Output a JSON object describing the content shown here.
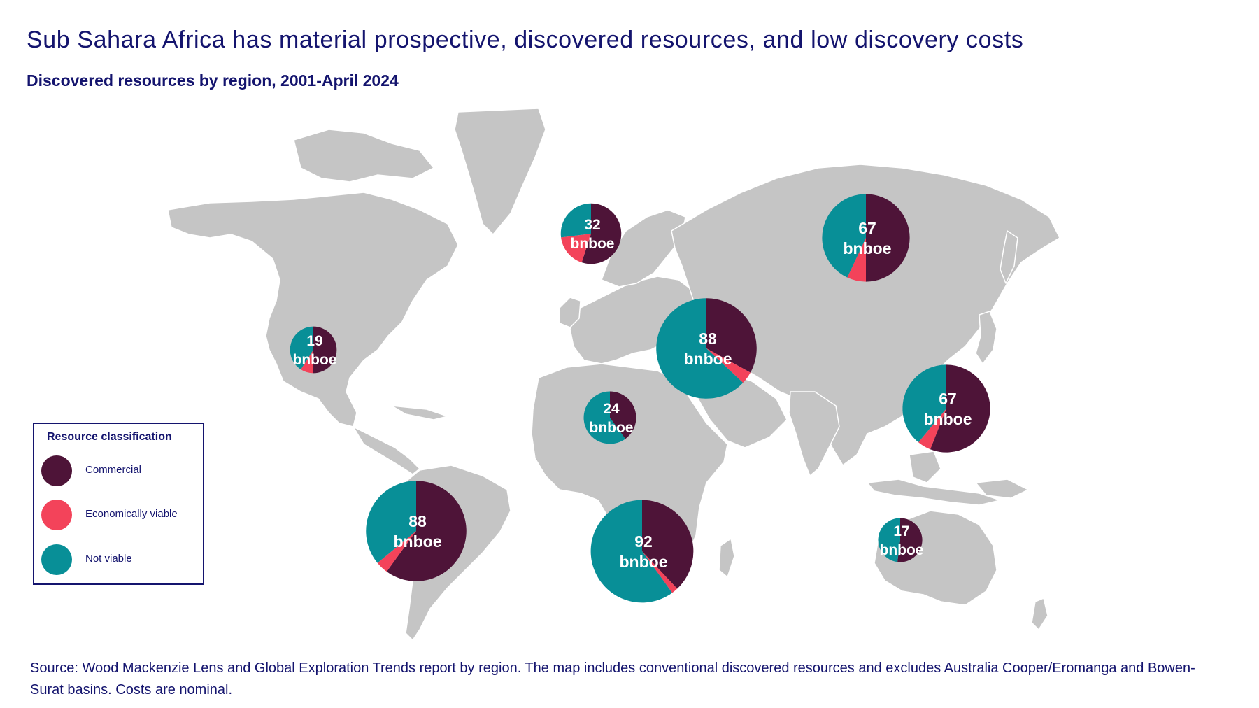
{
  "title": "Sub Sahara Africa has material prospective, discovered resources, and low discovery costs",
  "subtitle": "Discovered resources by region, 2001-April 2024",
  "legend": {
    "title": "Resource classification",
    "items": [
      {
        "label": "Commercial",
        "color": "#4e1438"
      },
      {
        "label": "Economically viable",
        "color": "#f3435a"
      },
      {
        "label": "Not viable",
        "color": "#088f97"
      }
    ]
  },
  "unit": "bnboe",
  "chart_data": {
    "type": "pie",
    "title": "Discovered resources by region, 2001-April 2024",
    "unit": "bnboe",
    "segment_order": [
      "Commercial",
      "Economically viable",
      "Not viable"
    ],
    "pies": [
      {
        "region": "North America",
        "total": 19,
        "shares": [
          0.5,
          0.09,
          0.41
        ]
      },
      {
        "region": "Europe",
        "total": 32,
        "shares": [
          0.55,
          0.18,
          0.27
        ]
      },
      {
        "region": "Russia and Caspian",
        "total": 67,
        "shares": [
          0.5,
          0.07,
          0.43
        ]
      },
      {
        "region": "Middle East",
        "total": 88,
        "shares": [
          0.33,
          0.04,
          0.63
        ]
      },
      {
        "region": "North Africa",
        "total": 24,
        "shares": [
          0.4,
          0.0,
          0.6
        ]
      },
      {
        "region": "Asia Pacific",
        "total": 67,
        "shares": [
          0.56,
          0.05,
          0.39
        ]
      },
      {
        "region": "Latin America",
        "total": 88,
        "shares": [
          0.6,
          0.04,
          0.36
        ]
      },
      {
        "region": "Sub Sahara Africa",
        "total": 92,
        "shares": [
          0.38,
          0.02,
          0.6
        ]
      },
      {
        "region": "Australasia",
        "total": 17,
        "shares": [
          0.52,
          0.0,
          0.48
        ]
      }
    ]
  },
  "source": "Source: Wood Mackenzie Lens and Global Exploration Trends report by region. The map includes conventional discovered resources and excludes Australia Cooper/Eromanga and Bowen-Surat basins. Costs are nominal."
}
